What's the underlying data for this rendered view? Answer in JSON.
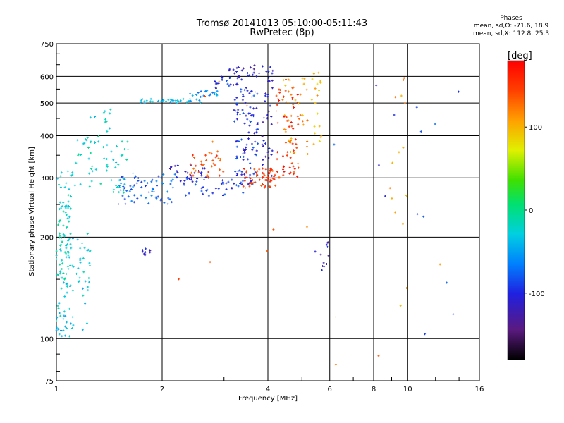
{
  "header": {
    "title_line1": "Tromsø 20141013 05:10:00-05:11:43",
    "title_line2": "RwPretec (8p)"
  },
  "stats": {
    "title": "Phases",
    "o_mode": "mean, sd,O: -71.6, 18.9",
    "x_mode": "mean, sd,X: 112.8, 25.3"
  },
  "chart_data": {
    "type": "scatter",
    "title": "Tromsø 20141013 05:10:00-05:11:43",
    "subtitle": "RwPretec (8p)",
    "xlabel": "Frequency [MHz]",
    "ylabel": "Stationary phase Virtual Height [km]",
    "xscale": "log",
    "yscale": "log",
    "xlim": [
      1,
      16
    ],
    "ylim": [
      75,
      750
    ],
    "x_ticks": [
      1,
      2,
      4,
      6,
      8,
      10,
      16
    ],
    "x_tick_labels": [
      "1",
      "2",
      "4",
      "6",
      "8",
      "10",
      "16"
    ],
    "y_ticks": [
      75,
      100,
      200,
      300,
      400,
      500,
      600,
      750
    ],
    "y_tick_labels": [
      "75",
      "100",
      "200",
      "300",
      "400",
      "500",
      "600",
      "750"
    ],
    "grid": true,
    "colorbar": {
      "label": "[deg]",
      "range": [
        -180,
        180
      ],
      "ticks": [
        100,
        0,
        -100
      ],
      "tick_labels": [
        "100",
        "0",
        "-100"
      ],
      "colors": [
        "#000000",
        "#5a1a80",
        "#2020e0",
        "#0080ff",
        "#00d0e0",
        "#00e070",
        "#40e000",
        "#e0f000",
        "#ffa000",
        "#ff4000",
        "#ff0000"
      ]
    },
    "series": [
      {
        "segments": [
          {
            "x": [
              1.0,
              1.1
            ],
            "y": [
              140,
              315
            ],
            "phase": -20,
            "n": 80
          },
          {
            "x": [
              1.0,
              1.25
            ],
            "y": [
              105,
              210
            ],
            "phase": -30,
            "n": 70
          },
          {
            "x": [
              1.0,
              1.1
            ],
            "y": [
              100,
              108
            ],
            "phase": -40,
            "n": 10
          },
          {
            "x": [
              1.1,
              1.6
            ],
            "y": [
              270,
              400
            ],
            "phase": -20,
            "n": 60
          },
          {
            "x": [
              1.2,
              1.45
            ],
            "y": [
              380,
              500
            ],
            "phase": -30,
            "n": 15
          },
          {
            "x": [
              1.5,
              2.2
            ],
            "y": [
              250,
              310
            ],
            "phase": -75,
            "n": 70
          },
          {
            "x": [
              1.7,
              2.6
            ],
            "y": [
              500,
              515
            ],
            "phase": -40,
            "n": 35
          },
          {
            "x": [
              2.4,
              2.9
            ],
            "y": [
              520,
              545
            ],
            "phase": -55,
            "n": 20
          },
          {
            "x": [
              2.8,
              3.4
            ],
            "y": [
              550,
              600
            ],
            "phase": -100,
            "n": 25
          },
          {
            "x": [
              3.1,
              3.8
            ],
            "y": [
              600,
              650
            ],
            "phase": -115,
            "n": 20
          },
          {
            "x": [
              2.1,
              2.7
            ],
            "y": [
              300,
              330
            ],
            "phase": -110,
            "n": 25
          },
          {
            "x": [
              2.2,
              3.4
            ],
            "y": [
              265,
              300
            ],
            "phase": -95,
            "n": 40
          },
          {
            "x": [
              3.2,
              3.75
            ],
            "y": [
              285,
              560
            ],
            "phase": -95,
            "n": 110
          },
          {
            "x": [
              3.85,
              4.15
            ],
            "y": [
              300,
              650
            ],
            "phase": -110,
            "n": 40
          },
          {
            "x": [
              2.4,
              3.0
            ],
            "y": [
              300,
              360
            ],
            "phase": 140,
            "n": 35
          },
          {
            "x": [
              3.4,
              4.3
            ],
            "y": [
              280,
              320
            ],
            "phase": 150,
            "n": 60
          },
          {
            "x": [
              4.2,
              4.9
            ],
            "y": [
              300,
              560
            ],
            "phase": 155,
            "n": 60
          },
          {
            "x": [
              4.4,
              5.2
            ],
            "y": [
              330,
              600
            ],
            "phase": 110,
            "n": 40
          },
          {
            "x": [
              5.3,
              5.7
            ],
            "y": [
              360,
              620
            ],
            "phase": 100,
            "n": 20
          },
          {
            "x": [
              5.4,
              6.0
            ],
            "y": [
              140,
              200
            ],
            "phase": -110,
            "n": 12
          },
          {
            "x": [
              1.75,
              1.85
            ],
            "y": [
              175,
              185
            ],
            "phase": -110,
            "n": 10
          },
          {
            "x": [
              8.9,
              10.1
            ],
            "y": [
              110,
              640
            ],
            "phase": 110,
            "n": 14
          },
          {
            "x": [
              6.0,
              14.5
            ],
            "y": [
              100,
              640
            ],
            "phase": -90,
            "n": 14
          },
          {
            "x": [
              2.0,
              14.5
            ],
            "y": [
              80,
              620
            ],
            "phase": 130,
            "n": 14
          }
        ]
      }
    ]
  }
}
